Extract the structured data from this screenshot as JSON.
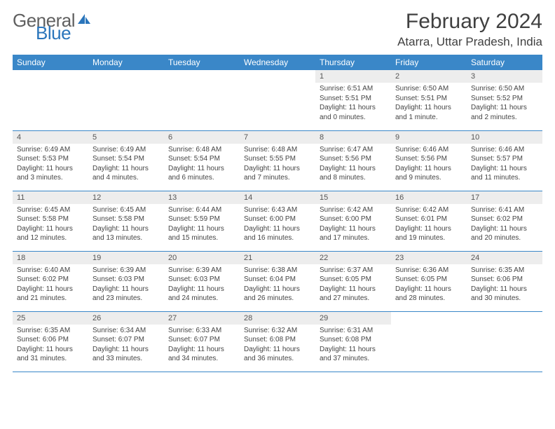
{
  "logo": {
    "text1": "General",
    "text2": "Blue"
  },
  "title": "February 2024",
  "location": "Atarra, Uttar Pradesh, India",
  "colors": {
    "header_bg": "#3a87c8",
    "header_text": "#ffffff",
    "daynum_bg": "#ededed",
    "border": "#3a87c8",
    "logo_gray": "#606060",
    "logo_blue": "#2a75bb"
  },
  "daysOfWeek": [
    "Sunday",
    "Monday",
    "Tuesday",
    "Wednesday",
    "Thursday",
    "Friday",
    "Saturday"
  ],
  "startOffset": 4,
  "days": [
    {
      "n": 1,
      "sr": "6:51 AM",
      "ss": "5:51 PM",
      "dl": "11 hours and 0 minutes."
    },
    {
      "n": 2,
      "sr": "6:50 AM",
      "ss": "5:51 PM",
      "dl": "11 hours and 1 minute."
    },
    {
      "n": 3,
      "sr": "6:50 AM",
      "ss": "5:52 PM",
      "dl": "11 hours and 2 minutes."
    },
    {
      "n": 4,
      "sr": "6:49 AM",
      "ss": "5:53 PM",
      "dl": "11 hours and 3 minutes."
    },
    {
      "n": 5,
      "sr": "6:49 AM",
      "ss": "5:54 PM",
      "dl": "11 hours and 4 minutes."
    },
    {
      "n": 6,
      "sr": "6:48 AM",
      "ss": "5:54 PM",
      "dl": "11 hours and 6 minutes."
    },
    {
      "n": 7,
      "sr": "6:48 AM",
      "ss": "5:55 PM",
      "dl": "11 hours and 7 minutes."
    },
    {
      "n": 8,
      "sr": "6:47 AM",
      "ss": "5:56 PM",
      "dl": "11 hours and 8 minutes."
    },
    {
      "n": 9,
      "sr": "6:46 AM",
      "ss": "5:56 PM",
      "dl": "11 hours and 9 minutes."
    },
    {
      "n": 10,
      "sr": "6:46 AM",
      "ss": "5:57 PM",
      "dl": "11 hours and 11 minutes."
    },
    {
      "n": 11,
      "sr": "6:45 AM",
      "ss": "5:58 PM",
      "dl": "11 hours and 12 minutes."
    },
    {
      "n": 12,
      "sr": "6:45 AM",
      "ss": "5:58 PM",
      "dl": "11 hours and 13 minutes."
    },
    {
      "n": 13,
      "sr": "6:44 AM",
      "ss": "5:59 PM",
      "dl": "11 hours and 15 minutes."
    },
    {
      "n": 14,
      "sr": "6:43 AM",
      "ss": "6:00 PM",
      "dl": "11 hours and 16 minutes."
    },
    {
      "n": 15,
      "sr": "6:42 AM",
      "ss": "6:00 PM",
      "dl": "11 hours and 17 minutes."
    },
    {
      "n": 16,
      "sr": "6:42 AM",
      "ss": "6:01 PM",
      "dl": "11 hours and 19 minutes."
    },
    {
      "n": 17,
      "sr": "6:41 AM",
      "ss": "6:02 PM",
      "dl": "11 hours and 20 minutes."
    },
    {
      "n": 18,
      "sr": "6:40 AM",
      "ss": "6:02 PM",
      "dl": "11 hours and 21 minutes."
    },
    {
      "n": 19,
      "sr": "6:39 AM",
      "ss": "6:03 PM",
      "dl": "11 hours and 23 minutes."
    },
    {
      "n": 20,
      "sr": "6:39 AM",
      "ss": "6:03 PM",
      "dl": "11 hours and 24 minutes."
    },
    {
      "n": 21,
      "sr": "6:38 AM",
      "ss": "6:04 PM",
      "dl": "11 hours and 26 minutes."
    },
    {
      "n": 22,
      "sr": "6:37 AM",
      "ss": "6:05 PM",
      "dl": "11 hours and 27 minutes."
    },
    {
      "n": 23,
      "sr": "6:36 AM",
      "ss": "6:05 PM",
      "dl": "11 hours and 28 minutes."
    },
    {
      "n": 24,
      "sr": "6:35 AM",
      "ss": "6:06 PM",
      "dl": "11 hours and 30 minutes."
    },
    {
      "n": 25,
      "sr": "6:35 AM",
      "ss": "6:06 PM",
      "dl": "11 hours and 31 minutes."
    },
    {
      "n": 26,
      "sr": "6:34 AM",
      "ss": "6:07 PM",
      "dl": "11 hours and 33 minutes."
    },
    {
      "n": 27,
      "sr": "6:33 AM",
      "ss": "6:07 PM",
      "dl": "11 hours and 34 minutes."
    },
    {
      "n": 28,
      "sr": "6:32 AM",
      "ss": "6:08 PM",
      "dl": "11 hours and 36 minutes."
    },
    {
      "n": 29,
      "sr": "6:31 AM",
      "ss": "6:08 PM",
      "dl": "11 hours and 37 minutes."
    }
  ],
  "labels": {
    "sunrise": "Sunrise:",
    "sunset": "Sunset:",
    "daylight": "Daylight:"
  }
}
